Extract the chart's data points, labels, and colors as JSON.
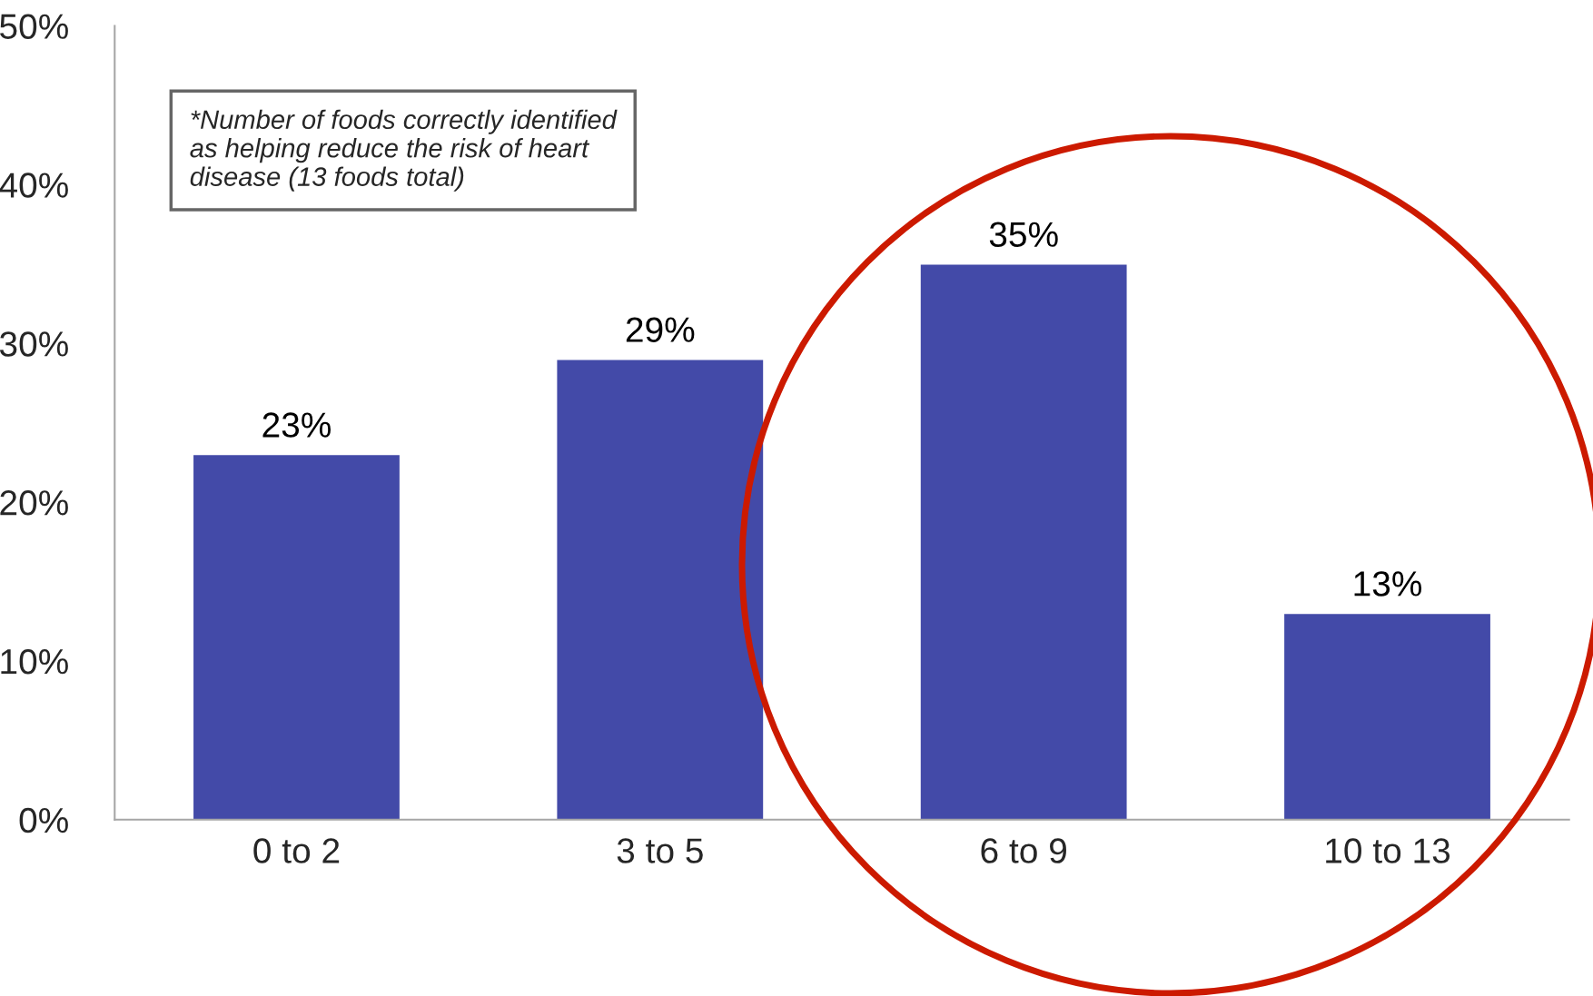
{
  "chart_data": {
    "type": "bar",
    "categories": [
      "0 to 2",
      "3 to 5",
      "6 to 9",
      "10 to 13"
    ],
    "values": [
      23,
      29,
      35,
      13
    ],
    "value_labels": [
      "23%",
      "29%",
      "35%",
      "13%"
    ],
    "color": "#434aa8",
    "ylim": [
      0,
      50
    ],
    "yticks": [
      {
        "value": 0,
        "label": "0%"
      },
      {
        "value": 10,
        "label": "10%"
      },
      {
        "value": 20,
        "label": "20%"
      },
      {
        "value": 30,
        "label": "30%"
      },
      {
        "value": 40,
        "label": "40%"
      },
      {
        "value": 50,
        "label": "50%"
      }
    ],
    "grid": false,
    "legend": false,
    "annotations": [
      "*Number of foods correctly identified\nas helping reduce the risk of heart\ndisease (13 foods total)"
    ]
  }
}
